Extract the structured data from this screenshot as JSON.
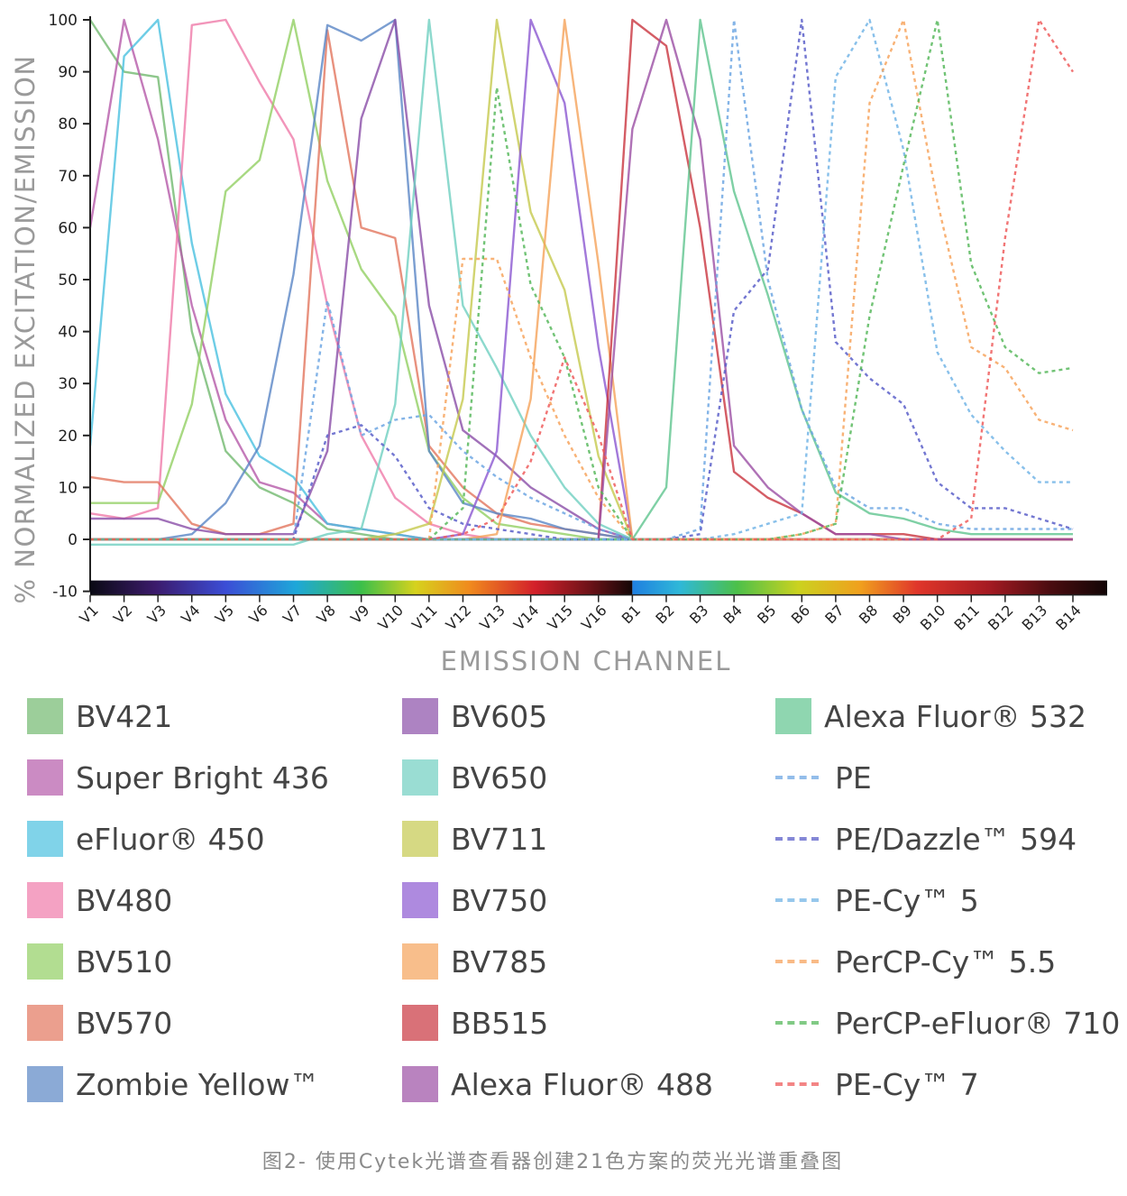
{
  "chart_data": {
    "type": "line",
    "title": "",
    "ylabel": "% NORMALIZED EXCITATION/EMISSION",
    "xlabel": "EMISSION CHANNEL",
    "ylim": [
      -10,
      100
    ],
    "yticks": [
      100,
      90,
      80,
      70,
      60,
      50,
      40,
      30,
      20,
      10,
      0,
      -10
    ],
    "categories": [
      "V1",
      "V2",
      "V3",
      "V4",
      "V5",
      "V6",
      "V7",
      "V8",
      "V9",
      "V10",
      "V11",
      "V12",
      "V13",
      "V14",
      "V15",
      "V16",
      "B1",
      "B2",
      "B3",
      "B4",
      "B5",
      "B6",
      "B7",
      "B8",
      "B9",
      "B10",
      "B11",
      "B12",
      "B13",
      "B14"
    ],
    "series": [
      {
        "name": "BV421",
        "color": "#72b96f",
        "style": "solid",
        "values": [
          100,
          90,
          89,
          40,
          17,
          10,
          7,
          2,
          1,
          0,
          0,
          0,
          0,
          0,
          0,
          0,
          0,
          0,
          0,
          0,
          0,
          0,
          0,
          0,
          0,
          0,
          0,
          0,
          0,
          0
        ]
      },
      {
        "name": "Super Bright 436",
        "color": "#b55aa9",
        "style": "solid",
        "values": [
          60,
          100,
          77,
          45,
          23,
          11,
          9,
          3,
          2,
          1,
          0,
          0,
          0,
          0,
          0,
          0,
          0,
          0,
          0,
          0,
          0,
          0,
          0,
          0,
          0,
          0,
          0,
          0,
          0,
          0
        ]
      },
      {
        "name": "eFluor® 450",
        "color": "#4ac1e0",
        "style": "solid",
        "values": [
          18,
          93,
          100,
          57,
          28,
          16,
          12,
          3,
          2,
          1,
          0,
          0,
          0,
          0,
          0,
          0,
          0,
          0,
          0,
          0,
          0,
          0,
          0,
          0,
          0,
          0,
          0,
          0,
          0,
          0
        ]
      },
      {
        "name": "BV480",
        "color": "#ef7ba9",
        "style": "solid",
        "values": [
          5,
          4,
          6,
          99,
          100,
          88,
          77,
          45,
          20,
          8,
          3,
          1,
          0,
          0,
          0,
          0,
          0,
          0,
          0,
          0,
          0,
          0,
          0,
          0,
          0,
          0,
          0,
          0,
          0,
          0
        ]
      },
      {
        "name": "BV510",
        "color": "#92cf63",
        "style": "solid",
        "values": [
          7,
          7,
          7,
          26,
          67,
          73,
          100,
          69,
          52,
          43,
          17,
          8,
          3,
          2,
          1,
          0,
          0,
          0,
          0,
          0,
          0,
          0,
          0,
          0,
          0,
          0,
          0,
          0,
          0,
          0
        ]
      },
      {
        "name": "BV570",
        "color": "#e2765e",
        "style": "solid",
        "values": [
          12,
          11,
          11,
          3,
          1,
          1,
          3,
          98,
          60,
          58,
          18,
          10,
          5,
          3,
          2,
          1,
          0,
          0,
          0,
          0,
          0,
          0,
          0,
          0,
          0,
          0,
          0,
          0,
          0,
          0
        ]
      },
      {
        "name": "Zombie Yellow™",
        "color": "#5a86c5",
        "style": "solid",
        "values": [
          0,
          0,
          0,
          1,
          7,
          18,
          51,
          99,
          96,
          100,
          17,
          7,
          5,
          4,
          2,
          1,
          0,
          0,
          0,
          0,
          0,
          0,
          0,
          0,
          0,
          0,
          0,
          0,
          0,
          0
        ]
      },
      {
        "name": "BV605",
        "color": "#8a4ea8",
        "style": "solid",
        "values": [
          4,
          4,
          4,
          2,
          1,
          1,
          1,
          17,
          81,
          100,
          45,
          21,
          16,
          10,
          6,
          2,
          0,
          0,
          0,
          0,
          0,
          0,
          0,
          0,
          0,
          0,
          0,
          0,
          0,
          0
        ]
      },
      {
        "name": "BV650",
        "color": "#6fcfc0",
        "style": "solid",
        "values": [
          -1,
          -1,
          -1,
          -1,
          -1,
          -1,
          -1,
          1,
          2,
          26,
          100,
          45,
          33,
          20,
          10,
          3,
          0,
          0,
          0,
          0,
          0,
          0,
          0,
          0,
          0,
          0,
          0,
          0,
          0,
          0
        ]
      },
      {
        "name": "BV711",
        "color": "#c5c94e",
        "style": "solid",
        "values": [
          0,
          0,
          0,
          0,
          0,
          0,
          0,
          0,
          0,
          1,
          3,
          27,
          100,
          63,
          48,
          16,
          0,
          0,
          0,
          0,
          0,
          0,
          0,
          0,
          0,
          0,
          0,
          0,
          0,
          0
        ]
      },
      {
        "name": "BV750",
        "color": "#8b58d1",
        "style": "solid",
        "values": [
          0,
          0,
          0,
          0,
          0,
          0,
          0,
          0,
          0,
          0,
          0,
          1,
          17,
          100,
          84,
          37,
          0,
          0,
          0,
          0,
          0,
          0,
          0,
          0,
          0,
          0,
          0,
          0,
          0,
          0
        ]
      },
      {
        "name": "BV785",
        "color": "#f5a35a",
        "style": "solid",
        "values": [
          0,
          0,
          0,
          0,
          0,
          0,
          0,
          0,
          0,
          0,
          0,
          0,
          1,
          27,
          100,
          53,
          0,
          0,
          0,
          0,
          0,
          0,
          0,
          0,
          0,
          0,
          0,
          0,
          0,
          0
        ]
      },
      {
        "name": "BB515",
        "color": "#c9353f",
        "style": "solid",
        "values": [
          0,
          0,
          0,
          0,
          0,
          0,
          0,
          0,
          0,
          0,
          0,
          0,
          0,
          0,
          0,
          0,
          100,
          95,
          60,
          13,
          8,
          5,
          1,
          1,
          1,
          0,
          0,
          0,
          0,
          0
        ]
      },
      {
        "name": "Alexa Fluor® 488",
        "color": "#9b4fa4",
        "style": "solid",
        "values": [
          0,
          0,
          0,
          0,
          0,
          0,
          0,
          0,
          0,
          0,
          0,
          0,
          0,
          0,
          0,
          0,
          79,
          100,
          77,
          18,
          10,
          5,
          1,
          1,
          0,
          0,
          0,
          0,
          0,
          0
        ]
      },
      {
        "name": "Alexa Fluor® 532",
        "color": "#5fc48f",
        "style": "solid",
        "values": [
          0,
          0,
          0,
          0,
          0,
          0,
          0,
          0,
          0,
          0,
          0,
          0,
          0,
          0,
          0,
          0,
          0,
          10,
          100,
          67,
          47,
          25,
          9,
          5,
          4,
          2,
          1,
          1,
          1,
          1
        ]
      },
      {
        "name": "PE",
        "color": "#6fa7e3",
        "style": "dashed",
        "values": [
          0,
          0,
          0,
          0,
          0,
          0,
          0,
          46,
          20,
          23,
          24,
          17,
          12,
          8,
          5,
          2,
          0,
          0,
          2,
          100,
          50,
          25,
          10,
          6,
          6,
          3,
          2,
          2,
          2,
          2
        ]
      },
      {
        "name": "PE/Dazzle™ 594",
        "color": "#5b5fc9",
        "style": "dashed",
        "values": [
          0,
          0,
          0,
          0,
          0,
          0,
          0,
          20,
          22,
          16,
          6,
          3,
          2,
          1,
          0,
          0,
          0,
          0,
          1,
          44,
          52,
          100,
          38,
          31,
          26,
          11,
          6,
          6,
          4,
          2
        ]
      },
      {
        "name": "PE-Cy™ 5",
        "color": "#73b5e6",
        "style": "dashed",
        "values": [
          0,
          0,
          0,
          0,
          0,
          0,
          0,
          0,
          0,
          0,
          0,
          0,
          0,
          0,
          0,
          0,
          0,
          0,
          0,
          1,
          3,
          5,
          89,
          100,
          75,
          36,
          24,
          17,
          11,
          11
        ]
      },
      {
        "name": "PerCP-Cy™ 5.5",
        "color": "#f7a45e",
        "style": "dashed",
        "values": [
          0,
          0,
          0,
          0,
          0,
          0,
          0,
          0,
          0,
          0,
          0,
          54,
          54,
          35,
          20,
          8,
          0,
          0,
          0,
          0,
          0,
          1,
          3,
          84,
          100,
          65,
          37,
          33,
          23,
          21
        ]
      },
      {
        "name": "PerCP-eFluor® 710",
        "color": "#58b95d",
        "style": "dashed",
        "values": [
          0,
          0,
          0,
          0,
          0,
          0,
          0,
          0,
          0,
          0,
          0,
          6,
          87,
          49,
          35,
          10,
          0,
          0,
          0,
          0,
          0,
          1,
          3,
          43,
          72,
          100,
          53,
          37,
          32,
          33
        ]
      },
      {
        "name": "PE-Cy™ 7",
        "color": "#ef5d5d",
        "style": "dashed",
        "values": [
          0,
          0,
          0,
          0,
          0,
          0,
          0,
          0,
          0,
          0,
          0,
          1,
          4,
          15,
          35,
          20,
          0,
          0,
          0,
          0,
          0,
          0,
          0,
          0,
          0,
          0,
          4,
          58,
          100,
          90
        ]
      }
    ]
  },
  "legend_columns": [
    [
      "BV421",
      "Super Bright 436",
      "eFluor® 450",
      "BV480",
      "BV510",
      "BV570",
      "Zombie Yellow™"
    ],
    [
      "BV605",
      "BV650",
      "BV711",
      "BV750",
      "BV785",
      "BB515",
      "Alexa Fluor® 488"
    ],
    [
      "Alexa Fluor® 532",
      "PE",
      "PE/Dazzle™ 594",
      "PE-Cy™ 5",
      "PerCP-Cy™ 5.5",
      "PerCP-eFluor® 710",
      "PE-Cy™ 7"
    ]
  ],
  "caption": "图2- 使用Cytek光谱查看器创建21色方案的荧光光谱重叠图"
}
